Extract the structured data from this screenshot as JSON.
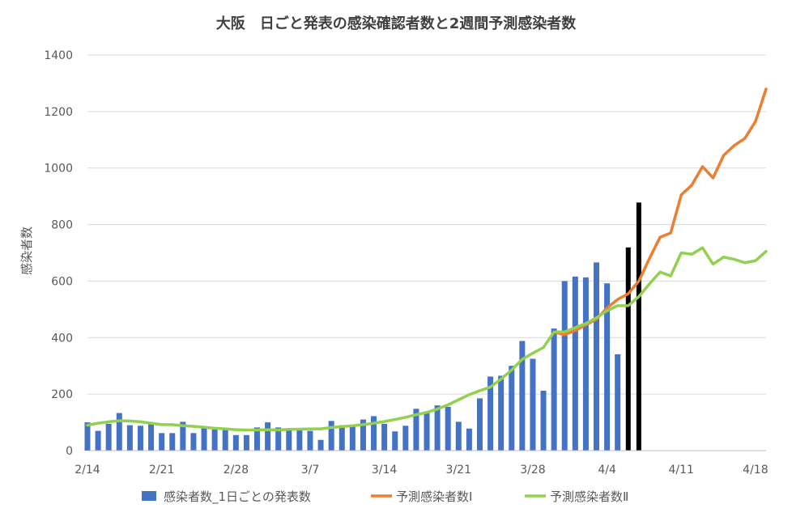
{
  "chart_data": {
    "type": "bar",
    "title": "大阪　日ごと発表の感染確認者数と2週間予測感染者数",
    "ylabel": "感染者数",
    "xlabel": "",
    "ylim": [
      0,
      1400
    ],
    "y_ticks": [
      0,
      200,
      400,
      600,
      800,
      1000,
      1200,
      1400
    ],
    "x_tick_labels": [
      "2/14",
      "2/21",
      "2/28",
      "3/7",
      "3/14",
      "3/21",
      "3/28",
      "4/4",
      "4/11",
      "4/18"
    ],
    "grid": "horizontal",
    "legend_position": "bottom",
    "dates": [
      "2/14",
      "2/15",
      "2/16",
      "2/17",
      "2/18",
      "2/19",
      "2/20",
      "2/21",
      "2/22",
      "2/23",
      "2/24",
      "2/25",
      "2/26",
      "2/27",
      "2/28",
      "3/1",
      "3/2",
      "3/3",
      "3/4",
      "3/5",
      "3/6",
      "3/7",
      "3/8",
      "3/9",
      "3/10",
      "3/11",
      "3/12",
      "3/13",
      "3/14",
      "3/15",
      "3/16",
      "3/17",
      "3/18",
      "3/19",
      "3/20",
      "3/21",
      "3/22",
      "3/23",
      "3/24",
      "3/25",
      "3/26",
      "3/27",
      "3/28",
      "3/29",
      "3/30",
      "3/31",
      "4/1",
      "4/2",
      "4/3",
      "4/4",
      "4/5",
      "4/6",
      "4/7",
      "4/8",
      "4/9",
      "4/10",
      "4/11",
      "4/12",
      "4/13",
      "4/14",
      "4/15",
      "4/16",
      "4/17",
      "4/18",
      "4/19"
    ],
    "series": [
      {
        "name": "感染者数_1日ごとの発表数",
        "kind": "bar",
        "color": "#4472C4",
        "values": [
          100,
          70,
          95,
          133,
          90,
          88,
          94,
          62,
          62,
          102,
          62,
          82,
          75,
          75,
          55,
          55,
          82,
          100,
          82,
          72,
          72,
          70,
          38,
          105,
          90,
          90,
          110,
          122,
          95,
          68,
          88,
          148,
          135,
          160,
          155,
          102,
          78,
          185,
          262,
          265,
          300,
          388,
          325,
          212,
          432,
          600,
          616,
          613,
          666,
          592,
          341,
          null,
          null,
          null,
          null,
          null,
          null,
          null,
          null,
          null,
          null,
          null,
          null,
          null,
          null
        ]
      },
      {
        "name": "",
        "kind": "bar",
        "color": "#000000",
        "values": [
          null,
          null,
          null,
          null,
          null,
          null,
          null,
          null,
          null,
          null,
          null,
          null,
          null,
          null,
          null,
          null,
          null,
          null,
          null,
          null,
          null,
          null,
          null,
          null,
          null,
          null,
          null,
          null,
          null,
          null,
          null,
          null,
          null,
          null,
          null,
          null,
          null,
          null,
          null,
          null,
          null,
          null,
          null,
          null,
          null,
          null,
          null,
          null,
          null,
          null,
          null,
          719,
          878,
          null,
          null,
          null,
          null,
          null,
          null,
          null,
          null,
          null,
          null,
          null,
          null
        ]
      },
      {
        "name": "予測感染者数Ⅰ",
        "kind": "line",
        "color": "#ED7D31",
        "values": [
          null,
          null,
          null,
          null,
          null,
          null,
          null,
          null,
          null,
          null,
          null,
          null,
          null,
          null,
          null,
          null,
          null,
          null,
          null,
          null,
          null,
          null,
          null,
          null,
          null,
          null,
          null,
          null,
          null,
          null,
          null,
          null,
          null,
          null,
          null,
          null,
          null,
          null,
          null,
          null,
          null,
          null,
          null,
          null,
          420,
          410,
          425,
          445,
          465,
          505,
          535,
          555,
          600,
          680,
          755,
          770,
          905,
          940,
          1005,
          965,
          1045,
          1080,
          1105,
          1165,
          1280
        ]
      },
      {
        "name": "予測感染者数Ⅱ",
        "kind": "line",
        "color": "#92D050",
        "values": [
          90,
          97,
          102,
          106,
          105,
          102,
          97,
          92,
          92,
          88,
          86,
          83,
          79,
          77,
          74,
          73,
          73,
          74,
          73,
          75,
          76,
          77,
          77,
          82,
          85,
          88,
          92,
          97,
          103,
          110,
          118,
          127,
          135,
          147,
          162,
          180,
          198,
          212,
          225,
          253,
          285,
          323,
          345,
          365,
          420,
          420,
          435,
          450,
          470,
          495,
          513,
          513,
          545,
          590,
          632,
          618,
          700,
          695,
          718,
          660,
          685,
          677,
          665,
          672,
          705
        ]
      }
    ]
  }
}
